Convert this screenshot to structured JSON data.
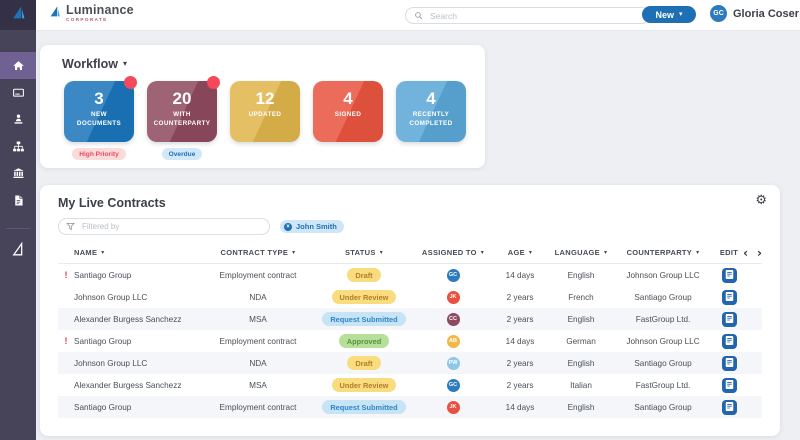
{
  "brand": {
    "name": "Luminance",
    "sub": "CORPORATE"
  },
  "topbar": {
    "search_placeholder": "Search",
    "new_label": "New",
    "user_initials": "GC",
    "user_name": "Gloria Coser"
  },
  "sidebar": {
    "items": [
      {
        "icon": "home-icon",
        "active": true
      },
      {
        "icon": "panel-icon",
        "active": false
      },
      {
        "icon": "user-podium-icon",
        "active": false
      },
      {
        "icon": "sitemap-icon",
        "active": false
      },
      {
        "icon": "bank-icon",
        "active": false
      },
      {
        "icon": "document-icon",
        "active": false
      }
    ],
    "footer_icon": "sail-outline-icon"
  },
  "workflow": {
    "title": "Workflow",
    "cards": [
      {
        "count": "3",
        "label": "NEW DOCUMENTS",
        "color": "#1b75bb",
        "dot": true,
        "badge": {
          "label": "High Priority",
          "bg": "#fbdada",
          "color": "#e84a5f"
        }
      },
      {
        "count": "20",
        "label": "WITH COUNTERPARTY",
        "color": "#8e4a5e",
        "dot": true,
        "badge": {
          "label": "Overdue",
          "bg": "#d2e7f8",
          "color": "#1f6fb4"
        }
      },
      {
        "count": "12",
        "label": "UPDATED",
        "color": "#dfb54b",
        "dot": false,
        "badge": null
      },
      {
        "count": "4",
        "label": "SIGNED",
        "color": "#e8543f",
        "dot": false,
        "badge": null
      },
      {
        "count": "4",
        "label": "RECENTLY COMPLETED",
        "color": "#5ba7d7",
        "dot": false,
        "badge": null
      }
    ]
  },
  "contracts": {
    "title": "My Live Contracts",
    "filter_placeholder": "Filtered by",
    "chip": {
      "label": "John Smith"
    },
    "columns": [
      {
        "label": "NAME",
        "sortable": true
      },
      {
        "label": "CONTRACT TYPE",
        "sortable": true
      },
      {
        "label": "STATUS",
        "sortable": true
      },
      {
        "label": "ASSIGNED TO",
        "sortable": true
      },
      {
        "label": "AGE",
        "sortable": true
      },
      {
        "label": "LANGUAGE",
        "sortable": true
      },
      {
        "label": "COUNTERPARTY",
        "sortable": true
      },
      {
        "label": "EDIT",
        "sortable": false
      }
    ],
    "status_styles": {
      "yellow": {
        "bg": "#f9dc7e",
        "color": "#b07c2a"
      },
      "blue": {
        "bg": "#c6e4f6",
        "color": "#2e86c6"
      },
      "green": {
        "bg": "#b6e09a",
        "color": "#55923a"
      }
    },
    "rows": [
      {
        "urgent": true,
        "name": "Santiago Group",
        "type": "Employment contract",
        "status": "Draft",
        "status_style": "yellow",
        "assignee": {
          "initials": "GC",
          "color": "#2d7bbd"
        },
        "age": "14 days",
        "language": "English",
        "counterparty": "Johnson Group LLC"
      },
      {
        "urgent": false,
        "name": "Johnson Group LLC",
        "type": "NDA",
        "status": "Under Review",
        "status_style": "yellow",
        "assignee": {
          "initials": "JK",
          "color": "#e8503f"
        },
        "age": "2 years",
        "language": "French",
        "counterparty": "Santiago Group"
      },
      {
        "urgent": false,
        "name": "Alexander Burgess Sanchezz",
        "type": "MSA",
        "status": "Request Submitted",
        "status_style": "blue",
        "assignee": {
          "initials": "CC",
          "color": "#8e4a5e"
        },
        "age": "2 years",
        "language": "English",
        "counterparty": "FastGroup Ltd."
      },
      {
        "urgent": true,
        "name": "Santiago Group",
        "type": "Employment contract",
        "status": "Approved",
        "status_style": "green",
        "assignee": {
          "initials": "AB",
          "color": "#f0b849"
        },
        "age": "14 days",
        "language": "German",
        "counterparty": "Johnson Group LLC"
      },
      {
        "urgent": false,
        "name": "Johnson Group LLC",
        "type": "NDA",
        "status": "Draft",
        "status_style": "yellow",
        "assignee": {
          "initials": "PW",
          "color": "#8ec7e8"
        },
        "age": "2 years",
        "language": "English",
        "counterparty": "Santiago Group"
      },
      {
        "urgent": false,
        "name": "Alexander Burgess Sanchezz",
        "type": "MSA",
        "status": "Under Review",
        "status_style": "yellow",
        "assignee": {
          "initials": "GC",
          "color": "#2d7bbd"
        },
        "age": "2 years",
        "language": "Italian",
        "counterparty": "FastGroup Ltd."
      },
      {
        "urgent": false,
        "name": "Santiago Group",
        "type": "Employment contract",
        "status": "Request Submitted",
        "status_style": "blue",
        "assignee": {
          "initials": "JK",
          "color": "#e8503f"
        },
        "age": "14 days",
        "language": "English",
        "counterparty": "Santiago Group"
      }
    ],
    "pager": {
      "prev": "‹",
      "next": "›"
    }
  }
}
